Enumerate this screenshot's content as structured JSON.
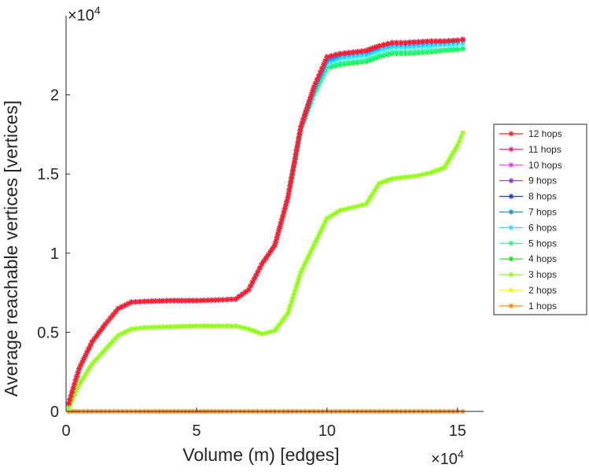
{
  "chart_data": {
    "type": "line",
    "title": "",
    "xlabel": "Volume (m) [edges]",
    "ylabel": "Average reachable vertices [vertices]",
    "x_multiplier": "×10",
    "x_exponent": "4",
    "y_multiplier": "×10",
    "y_exponent": "4",
    "xlim": [
      0,
      16
    ],
    "ylim": [
      0,
      2.5
    ],
    "xticks": [
      0,
      5,
      10,
      15
    ],
    "xtick_labels": [
      "0",
      "5",
      "10",
      "15"
    ],
    "yticks": [
      0,
      0.5,
      1,
      1.5,
      2
    ],
    "ytick_labels": [
      "0",
      "0.5",
      "1",
      "1.5",
      "2"
    ],
    "grid": false,
    "legend_position": "right",
    "marker": "asterisk",
    "x": [
      0.1,
      0.5,
      1.0,
      1.5,
      2.0,
      2.5,
      3.0,
      4.0,
      5.0,
      6.0,
      6.5,
      7.0,
      7.5,
      8.0,
      8.5,
      9.0,
      9.5,
      10.0,
      10.5,
      11.0,
      11.5,
      12.0,
      12.5,
      13.0,
      13.5,
      14.0,
      14.5,
      15.0,
      15.2
    ],
    "series": [
      {
        "name": "12 hops",
        "color": "#ff2020",
        "values": [
          0.05,
          0.27,
          0.44,
          0.55,
          0.65,
          0.69,
          0.695,
          0.7,
          0.7,
          0.705,
          0.71,
          0.77,
          0.93,
          1.05,
          1.35,
          1.8,
          2.05,
          2.24,
          2.26,
          2.27,
          2.28,
          2.31,
          2.33,
          2.33,
          2.335,
          2.34,
          2.34,
          2.345,
          2.35
        ]
      },
      {
        "name": "11 hops",
        "color": "#ff1a8c",
        "values": [
          0.05,
          0.27,
          0.44,
          0.55,
          0.65,
          0.69,
          0.695,
          0.7,
          0.7,
          0.705,
          0.71,
          0.77,
          0.93,
          1.05,
          1.35,
          1.8,
          2.05,
          2.24,
          2.26,
          2.27,
          2.28,
          2.31,
          2.33,
          2.33,
          2.335,
          2.34,
          2.34,
          2.345,
          2.35
        ]
      },
      {
        "name": "10 hops",
        "color": "#ff33ff",
        "values": [
          0.05,
          0.27,
          0.44,
          0.55,
          0.65,
          0.69,
          0.695,
          0.7,
          0.7,
          0.705,
          0.71,
          0.77,
          0.93,
          1.05,
          1.35,
          1.8,
          2.05,
          2.24,
          2.26,
          2.27,
          2.28,
          2.31,
          2.33,
          2.33,
          2.335,
          2.34,
          2.34,
          2.345,
          2.35
        ]
      },
      {
        "name": "9 hops",
        "color": "#8c33ff",
        "values": [
          0.05,
          0.27,
          0.44,
          0.55,
          0.65,
          0.69,
          0.695,
          0.7,
          0.7,
          0.705,
          0.71,
          0.77,
          0.93,
          1.05,
          1.35,
          1.8,
          2.05,
          2.24,
          2.26,
          2.27,
          2.28,
          2.31,
          2.33,
          2.33,
          2.335,
          2.34,
          2.34,
          2.345,
          2.35
        ]
      },
      {
        "name": "8 hops",
        "color": "#1a33ff",
        "values": [
          0.05,
          0.27,
          0.44,
          0.55,
          0.65,
          0.69,
          0.695,
          0.7,
          0.7,
          0.705,
          0.71,
          0.77,
          0.93,
          1.05,
          1.35,
          1.8,
          2.05,
          2.24,
          2.26,
          2.27,
          2.28,
          2.31,
          2.33,
          2.33,
          2.335,
          2.34,
          2.34,
          2.345,
          2.35
        ]
      },
      {
        "name": "7 hops",
        "color": "#1a8cff",
        "values": [
          0.05,
          0.27,
          0.44,
          0.55,
          0.65,
          0.69,
          0.695,
          0.7,
          0.7,
          0.705,
          0.71,
          0.77,
          0.93,
          1.05,
          1.35,
          1.8,
          2.04,
          2.22,
          2.25,
          2.26,
          2.27,
          2.3,
          2.32,
          2.32,
          2.325,
          2.33,
          2.335,
          2.34,
          2.345
        ]
      },
      {
        "name": "6 hops",
        "color": "#1ae6ff",
        "values": [
          0.05,
          0.27,
          0.44,
          0.55,
          0.65,
          0.69,
          0.695,
          0.7,
          0.7,
          0.705,
          0.71,
          0.77,
          0.93,
          1.05,
          1.35,
          1.79,
          2.02,
          2.2,
          2.23,
          2.24,
          2.25,
          2.28,
          2.3,
          2.3,
          2.305,
          2.31,
          2.315,
          2.32,
          2.325
        ]
      },
      {
        "name": "5 hops",
        "color": "#1aff8c",
        "values": [
          0.05,
          0.27,
          0.44,
          0.55,
          0.65,
          0.69,
          0.695,
          0.7,
          0.7,
          0.705,
          0.71,
          0.77,
          0.93,
          1.05,
          1.35,
          1.78,
          2.0,
          2.17,
          2.2,
          2.21,
          2.22,
          2.25,
          2.27,
          2.27,
          2.275,
          2.28,
          2.285,
          2.29,
          2.295
        ]
      },
      {
        "name": "4 hops",
        "color": "#26d926",
        "values": [
          0.05,
          0.27,
          0.44,
          0.55,
          0.65,
          0.69,
          0.695,
          0.7,
          0.7,
          0.705,
          0.71,
          0.77,
          0.93,
          1.05,
          1.35,
          1.78,
          2.0,
          2.17,
          2.19,
          2.2,
          2.21,
          2.24,
          2.26,
          2.26,
          2.265,
          2.27,
          2.28,
          2.285,
          2.29
        ]
      },
      {
        "name": "3 hops",
        "color": "#8cff1a",
        "values": [
          0.02,
          0.17,
          0.3,
          0.39,
          0.48,
          0.52,
          0.53,
          0.535,
          0.54,
          0.54,
          0.54,
          0.52,
          0.49,
          0.51,
          0.62,
          0.88,
          1.05,
          1.22,
          1.27,
          1.29,
          1.31,
          1.44,
          1.47,
          1.48,
          1.49,
          1.51,
          1.54,
          1.68,
          1.76
        ]
      },
      {
        "name": "2 hops",
        "color": "#f2f21a",
        "values": [
          0.02,
          0.17,
          0.3,
          0.39,
          0.48,
          0.52,
          0.53,
          0.535,
          0.54,
          0.54,
          0.54,
          0.52,
          0.49,
          0.51,
          0.62,
          0.88,
          1.05,
          1.22,
          1.27,
          1.29,
          1.31,
          1.44,
          1.47,
          1.48,
          1.49,
          1.51,
          1.54,
          1.68,
          1.76
        ]
      },
      {
        "name": "1 hops",
        "color": "#ff8c1a",
        "values": [
          0.0,
          0.0,
          0.0,
          0.0,
          0.0,
          0.0,
          0.0,
          0.0,
          0.0,
          0.0,
          0.0,
          0.0,
          0.0,
          0.0,
          0.0,
          0.0,
          0.0,
          0.0,
          0.0,
          0.0,
          0.0,
          0.0,
          0.0,
          0.0,
          0.0,
          0.0,
          0.0,
          0.0,
          0.0
        ]
      }
    ]
  }
}
